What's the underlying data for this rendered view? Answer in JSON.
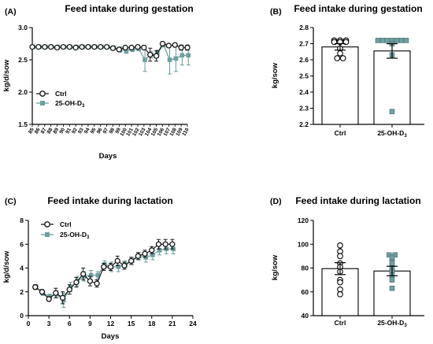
{
  "colors": {
    "ctrl": "#1a1a1a",
    "treat": "#6b9b9b",
    "treat_fill": "#6e9f9f",
    "axis": "#000000"
  },
  "chart_data": [
    {
      "panel": "(A)",
      "type": "line",
      "title": "Feed intake during gestation",
      "xlabel": "Days",
      "ylabel": "kg/d/sow",
      "ylim": [
        1.5,
        3.0
      ],
      "yticks": [
        "1.5",
        "2.0",
        "2.5",
        "3.0"
      ],
      "x": [
        85,
        86,
        87,
        88,
        89,
        90,
        91,
        92,
        93,
        94,
        95,
        96,
        97,
        98,
        99,
        100,
        101,
        102,
        103,
        104,
        105,
        106,
        107,
        108,
        109,
        110
      ],
      "xtick_labels": [
        "85",
        "86",
        "87",
        "88",
        "89",
        "90",
        "91",
        "92",
        "93",
        "94",
        "95",
        "96",
        "97",
        "98",
        "99",
        "100",
        "101",
        "102",
        "103",
        "104",
        "105",
        "106",
        "107",
        "108",
        "109",
        "110"
      ],
      "legend": [
        "Ctrl",
        "25-OH-D3"
      ],
      "series": [
        {
          "name": "Ctrl",
          "values": [
            2.7,
            2.7,
            2.7,
            2.7,
            2.69,
            2.7,
            2.7,
            2.69,
            2.7,
            2.7,
            2.7,
            2.7,
            2.7,
            2.68,
            2.66,
            2.69,
            2.69,
            2.7,
            2.69,
            2.58,
            2.56,
            2.75,
            2.72,
            2.73,
            2.69,
            2.69
          ],
          "errors": [
            0.01,
            0.01,
            0.01,
            0.01,
            0.01,
            0.01,
            0.01,
            0.01,
            0.01,
            0.01,
            0.01,
            0.01,
            0.01,
            0.02,
            0.03,
            0.02,
            0.02,
            0.02,
            0.03,
            0.1,
            0.08,
            0.03,
            0.03,
            0.03,
            0.04,
            0.04
          ]
        },
        {
          "name": "25-OH-D3",
          "values": [
            2.7,
            2.7,
            2.7,
            2.7,
            2.7,
            2.7,
            2.7,
            2.7,
            2.7,
            2.7,
            2.7,
            2.7,
            2.7,
            2.69,
            2.66,
            2.64,
            2.66,
            2.67,
            2.5,
            2.58,
            2.6,
            2.73,
            2.5,
            2.52,
            2.57,
            2.57
          ],
          "errors": [
            0.01,
            0.01,
            0.01,
            0.01,
            0.01,
            0.01,
            0.01,
            0.01,
            0.01,
            0.01,
            0.01,
            0.01,
            0.01,
            0.02,
            0.04,
            0.04,
            0.03,
            0.03,
            0.18,
            0.05,
            0.05,
            0.03,
            0.22,
            0.2,
            0.15,
            0.15
          ]
        }
      ]
    },
    {
      "panel": "(B)",
      "type": "bar",
      "title": "Feed intake during gestation",
      "xlabel": "",
      "ylabel": "kg/sow",
      "ylim": [
        2.2,
        2.8
      ],
      "yticks": [
        "2.2",
        "2.3",
        "2.4",
        "2.5",
        "2.6",
        "2.7",
        "2.8"
      ],
      "categories": [
        "Ctrl",
        "25-OH-D3"
      ],
      "values": [
        2.68,
        2.655
      ],
      "errors": [
        0.02,
        0.045
      ],
      "points": [
        [
          2.72,
          2.72,
          2.72,
          2.71,
          2.71,
          2.71,
          2.67,
          2.64,
          2.61,
          2.61
        ],
        [
          2.72,
          2.72,
          2.72,
          2.72,
          2.72,
          2.72,
          2.72,
          2.7,
          2.63,
          2.28
        ]
      ]
    },
    {
      "panel": "(C)",
      "type": "line",
      "title": "Feed intake during lactation",
      "xlabel": "Days",
      "ylabel": "kg/d/sow",
      "ylim": [
        0,
        8
      ],
      "xlim": [
        0,
        24
      ],
      "yticks": [
        "0",
        "2",
        "4",
        "6",
        "8"
      ],
      "xtick_labels": [
        "0",
        "3",
        "6",
        "9",
        "12",
        "15",
        "18",
        "21",
        "24"
      ],
      "x": [
        1,
        2,
        3,
        4,
        5,
        6,
        7,
        8,
        9,
        10,
        11,
        12,
        13,
        14,
        15,
        16,
        17,
        18,
        19,
        20,
        21
      ],
      "legend": [
        "Ctrl",
        "25-OH-D3"
      ],
      "series": [
        {
          "name": "Ctrl",
          "values": [
            2.4,
            2.0,
            1.4,
            1.9,
            1.5,
            2.2,
            2.8,
            3.5,
            2.9,
            2.7,
            4.1,
            4.1,
            4.6,
            4.2,
            4.6,
            5.0,
            5.2,
            5.5,
            6.0,
            6.0,
            6.0
          ],
          "errors": [
            0.2,
            0.2,
            0.2,
            0.4,
            0.5,
            0.4,
            0.4,
            0.5,
            0.4,
            0.3,
            0.3,
            0.3,
            0.4,
            0.3,
            0.3,
            0.3,
            0.3,
            0.3,
            0.4,
            0.4,
            0.4
          ]
        },
        {
          "name": "25-OH-D3",
          "values": [
            2.4,
            1.9,
            1.6,
            1.8,
            1.3,
            2.4,
            2.9,
            3.3,
            3.4,
            3.4,
            4.3,
            4.1,
            4.1,
            4.3,
            4.6,
            5.0,
            4.9,
            5.1,
            5.5,
            5.6,
            5.6
          ],
          "errors": [
            0.2,
            0.2,
            0.2,
            0.3,
            0.6,
            0.4,
            0.4,
            0.4,
            0.4,
            0.3,
            0.3,
            0.4,
            0.4,
            0.3,
            0.3,
            0.3,
            0.4,
            0.4,
            0.4,
            0.4,
            0.4
          ]
        }
      ]
    },
    {
      "panel": "(D)",
      "type": "bar",
      "title": "Feed intake during lactation",
      "xlabel": "",
      "ylabel": "kg/sow",
      "ylim": [
        40,
        120
      ],
      "yticks": [
        "40",
        "60",
        "80",
        "100",
        "120"
      ],
      "categories": [
        "Ctrl",
        "25-OH-D3"
      ],
      "values": [
        79.5,
        77.5
      ],
      "errors": [
        5,
        4
      ],
      "points": [
        [
          99,
          94,
          90,
          84,
          81,
          77,
          70,
          68,
          62,
          58
        ],
        [
          91,
          91,
          89,
          85,
          84,
          80,
          77,
          74,
          70,
          63
        ]
      ]
    }
  ]
}
